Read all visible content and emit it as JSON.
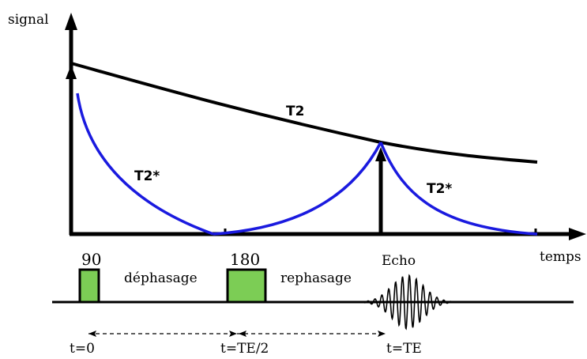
{
  "axes": {
    "y_label": "signal",
    "x_label": "temps"
  },
  "curves": {
    "t2_label": "T2",
    "t2_star_left_label": "T2*",
    "t2_star_right_label": "T2*",
    "t2_color": "#000000",
    "t2_star_color": "#1a1adf"
  },
  "pulses": {
    "pulse_90_label": "90",
    "pulse_180_label": "180",
    "echo_label": "Echo",
    "dephasing_label": "déphasage",
    "rephasing_label": "rephasage",
    "pulse_fill_color": "#7ccd55"
  },
  "timeline": {
    "t0_label": "t=0",
    "te_half_label": "t=TE/2",
    "te_label": "t=TE"
  }
}
